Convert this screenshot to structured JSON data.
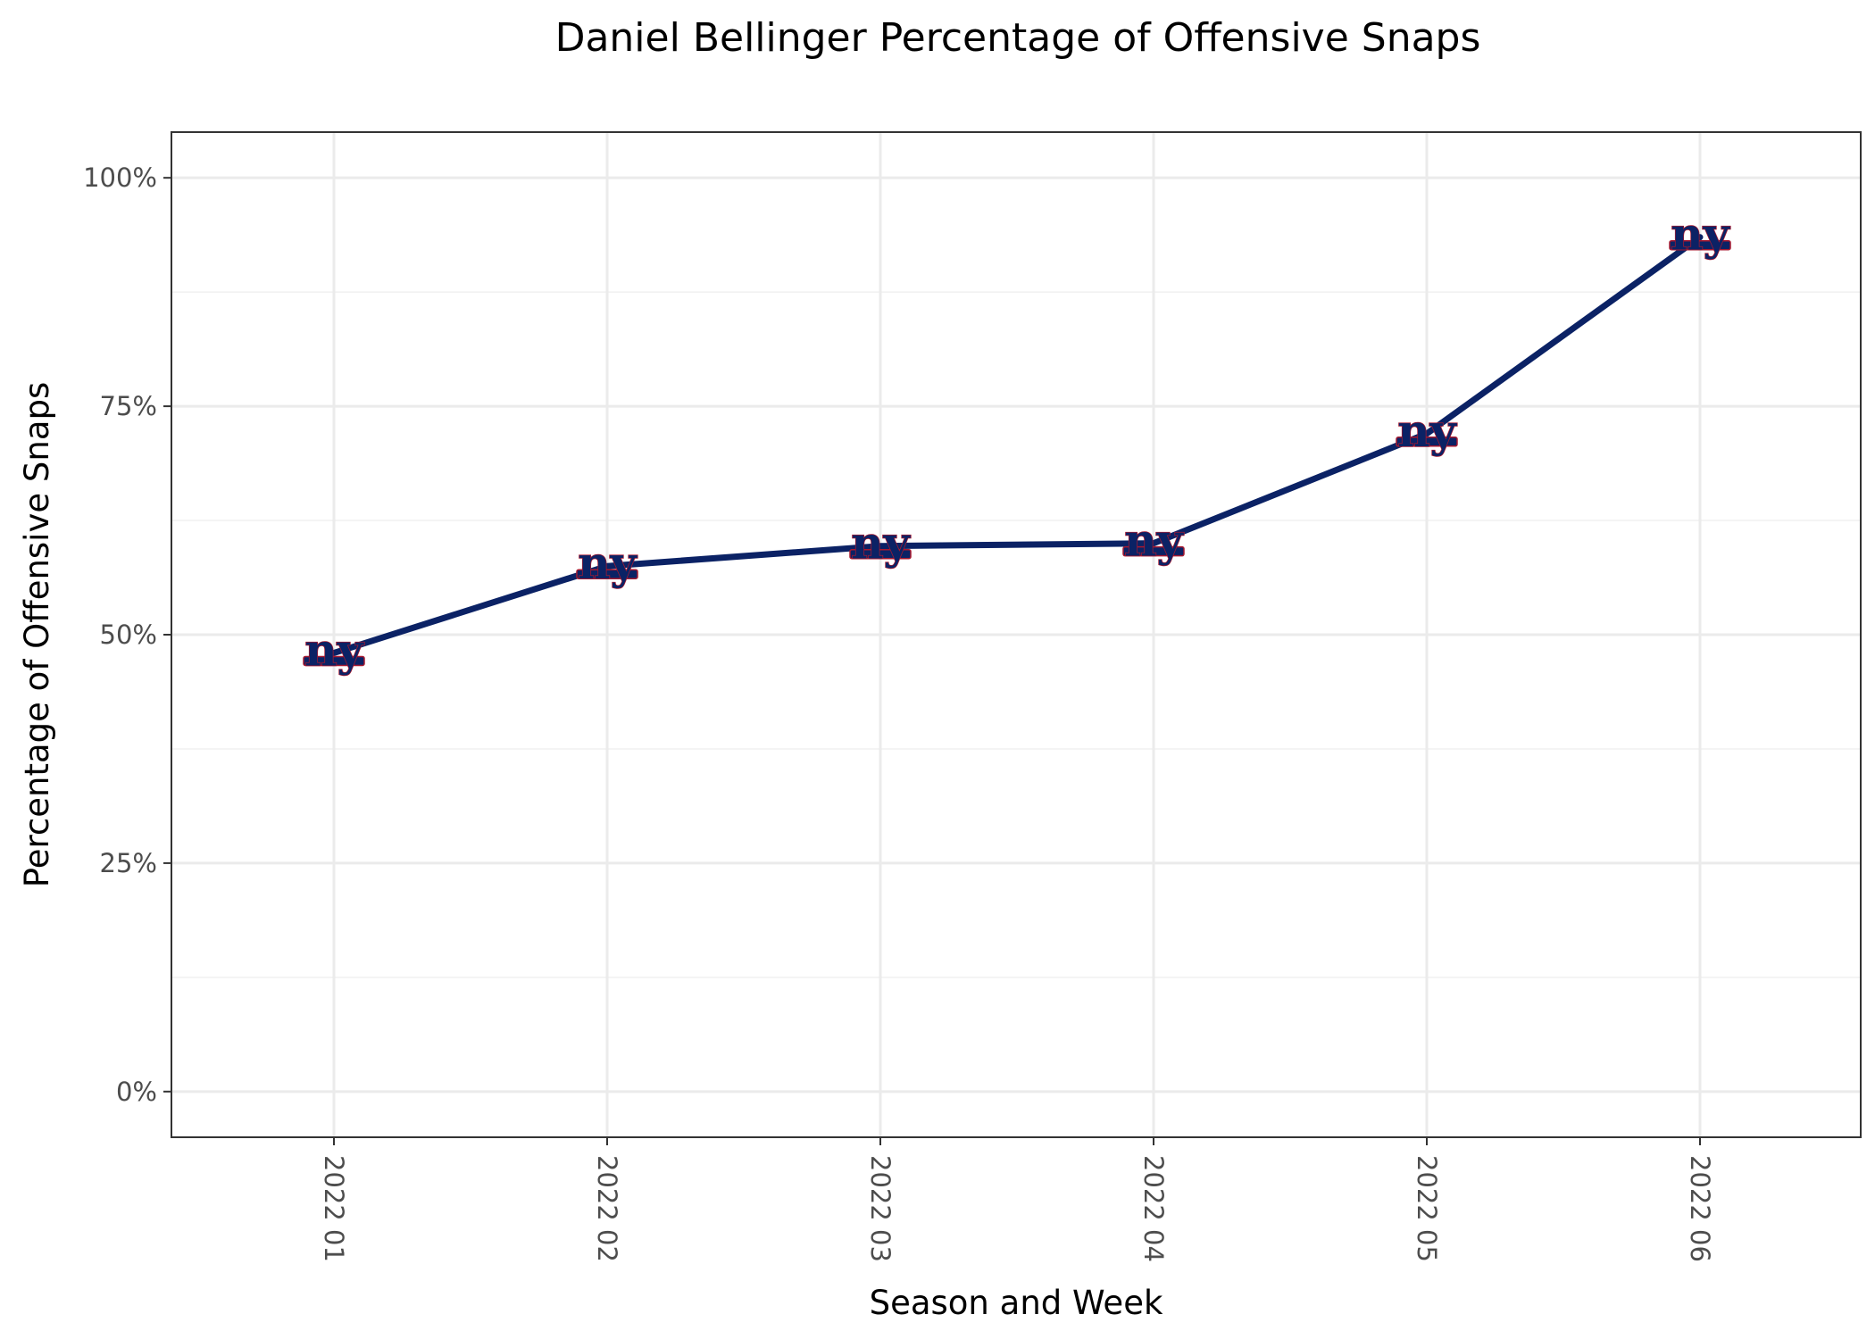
{
  "chart_data": {
    "type": "line",
    "title": "Daniel Bellinger Percentage of Offensive Snaps",
    "xlabel": "Season and Week",
    "ylabel": "Percentage of Offensive Snaps",
    "categories": [
      "2022 01",
      "2022 02",
      "2022 03",
      "2022 04",
      "2022 05",
      "2022 06"
    ],
    "series": [
      {
        "values": [
          0.48,
          0.575,
          0.597,
          0.6,
          0.72,
          0.935
        ],
        "color": "#0b2265",
        "marker_label": "ny",
        "marker_color": "#0b2265",
        "marker_outline": "#a71930"
      }
    ],
    "ylim": [
      -0.05,
      1.05
    ],
    "yticks": [
      0,
      0.25,
      0.5,
      0.75,
      1.0
    ],
    "ytick_labels": [
      "0%",
      "25%",
      "50%",
      "75%",
      "100%"
    ],
    "grid": true,
    "legend": "none"
  }
}
